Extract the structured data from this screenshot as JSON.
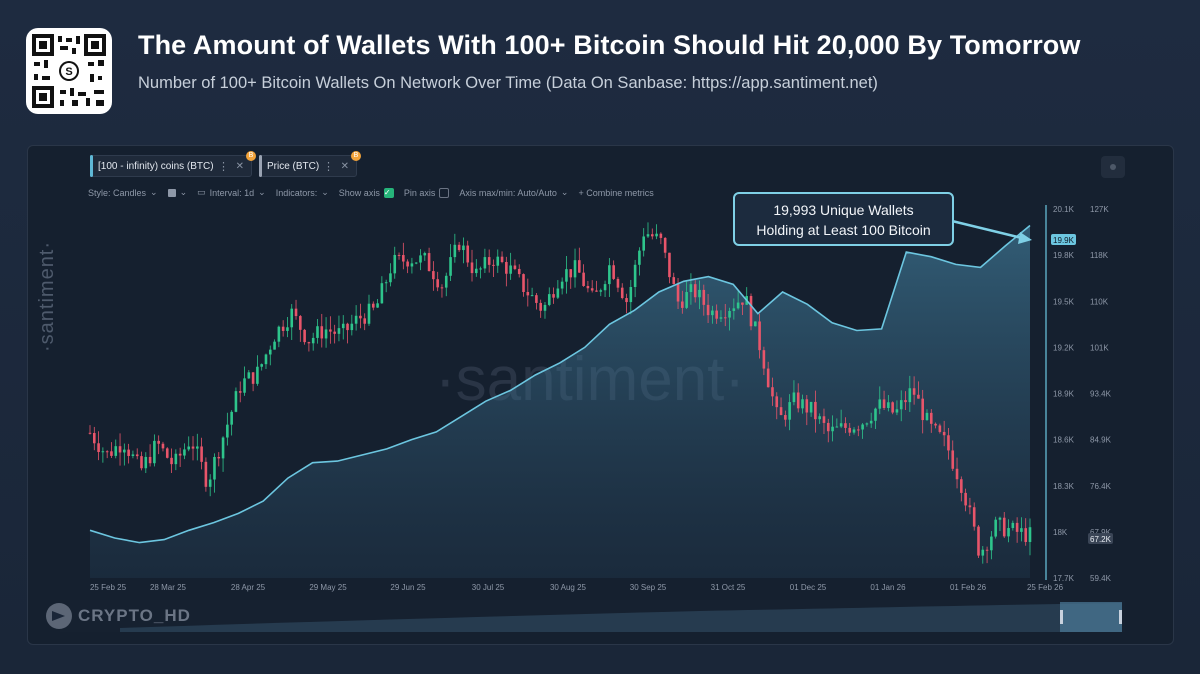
{
  "header": {
    "title": "The Amount of Wallets With 100+ Bitcoin Should Hit 20,000 By Tomorrow",
    "subtitle": "Number of 100+ Bitcoin Wallets On Network Over Time (Data On Sanbase: https://app.santiment.net)"
  },
  "metric_tabs": [
    {
      "label": "[100 - infinity) coins (BTC)",
      "color": "#5fb8d6",
      "badge": "B"
    },
    {
      "label": "Price (BTC)",
      "color": "#9aa3b2",
      "badge": "B"
    }
  ],
  "toolbar": {
    "style": "Style: Candles",
    "interval": "Interval: 1d",
    "indicators": "Indicators:",
    "show_axis": "Show axis",
    "pin_axis": "Pin axis",
    "axis_maxmin": "Axis max/min: Auto/Auto",
    "combine": "+ Combine metrics"
  },
  "callout": {
    "line1": "19,993 Unique Wallets",
    "line2": "Holding at Least 100 Bitcoin"
  },
  "watermark": {
    "center": "·santiment·",
    "side": "·santiment·",
    "credit": "CRYPTO_HD"
  },
  "colors": {
    "wallet_line": "#6cc6e0",
    "candle_up": "#2ec58c",
    "candle_down": "#e8556a",
    "price_current": "#3a4556"
  },
  "chart_data": {
    "type": "line",
    "x_ticks": [
      "25 Feb 25",
      "28 Mar 25",
      "28 Apr 25",
      "29 May 25",
      "29 Jun 25",
      "30 Jul 25",
      "30 Aug 25",
      "30 Sep 25",
      "31 Oct 25",
      "01 Dec 25",
      "01 Jan 26",
      "01 Feb 26",
      "25 Feb 26"
    ],
    "wallet_axis": {
      "ticks": [
        "20.1K",
        "19.8K",
        "19.5K",
        "19.2K",
        "18.9K",
        "18.6K",
        "18.3K",
        "18K",
        "17.7K"
      ],
      "ylim": [
        17700,
        20100
      ],
      "current": "19.9K"
    },
    "price_axis": {
      "ticks": [
        "127K",
        "118K",
        "110K",
        "101K",
        "93.4K",
        "84.9K",
        "76.4K",
        "67.9K",
        "59.4K"
      ],
      "ylim": [
        59400,
        127000
      ],
      "current": "67.2K"
    },
    "series": [
      {
        "name": "[100 - infinity) coins (BTC)",
        "values": [
          18010,
          17960,
          17930,
          17950,
          18010,
          18060,
          18120,
          18200,
          18350,
          18450,
          18460,
          18500,
          18540,
          18600,
          18650,
          18750,
          18850,
          18920,
          19020,
          19100,
          19200,
          19350,
          19440,
          19560,
          19630,
          19660,
          19610,
          19420,
          19560,
          19480,
          19360,
          19310,
          19320,
          19820,
          19790,
          19740,
          19720,
          19860,
          19993
        ]
      },
      {
        "name": "Price (BTC)",
        "values": [
          86000,
          82000,
          84500,
          79000,
          84000,
          80000,
          85000,
          77000,
          86000,
          95000,
          97000,
          104000,
          108000,
          103000,
          105000,
          104000,
          107000,
          108500,
          117000,
          118000,
          117500,
          113000,
          121000,
          115000,
          118000,
          116000,
          112000,
          108500,
          115000,
          116000,
          110000,
          117000,
          110000,
          123000,
          121000,
          110000,
          112000,
          108000,
          109000,
          111000,
          101000,
          88000,
          92000,
          90000,
          86000,
          87000,
          88000,
          91000,
          89500,
          94000,
          87000,
          84000,
          76000,
          64000,
          69000,
          68000,
          67200
        ]
      }
    ]
  }
}
